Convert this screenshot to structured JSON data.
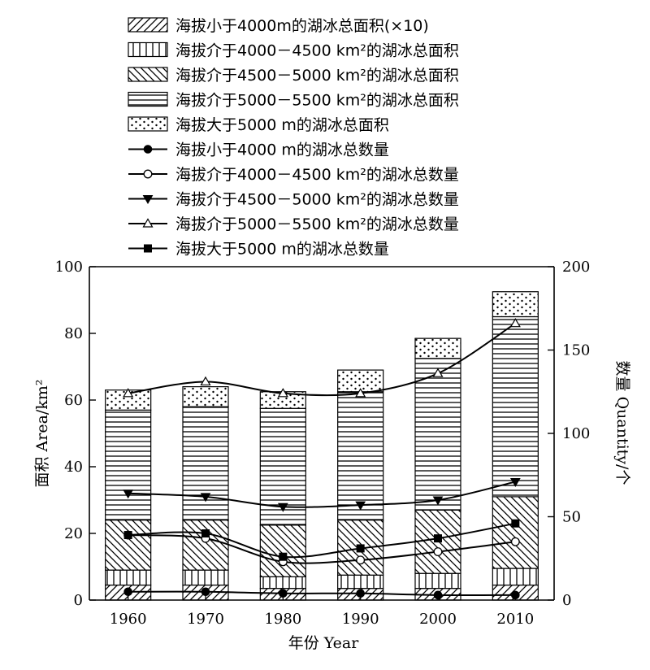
{
  "chart_data": {
    "type": "bar",
    "subtype": "stacked-bar-with-lines",
    "categories": [
      "1960",
      "1970",
      "1980",
      "1990",
      "2000",
      "2010"
    ],
    "xlabel": "年份 Year",
    "ylabel_left": "面积 Area/km²",
    "ylabel_right": "数量 Quantity/个",
    "ylim_left": [
      0,
      100
    ],
    "ylim_right": [
      0,
      200
    ],
    "yticks_left": [
      "0",
      "20",
      "40",
      "60",
      "80",
      "100"
    ],
    "yticks_right": [
      "0",
      "50",
      "100",
      "150",
      "200"
    ],
    "grid": false,
    "legend_position": "top",
    "bar_series": [
      {
        "name": "海拔小于4000m的湖冰总面积(×10)",
        "pattern": "diag-right",
        "values": [
          4.5,
          4.5,
          3.5,
          3.5,
          3.5,
          4.5
        ]
      },
      {
        "name": "海拔介于4000－4500 km²的湖冰总面积",
        "pattern": "vertical",
        "values": [
          4.5,
          4.5,
          3.5,
          4.0,
          4.5,
          5.0
        ]
      },
      {
        "name": "海拔介于4500－5000 km²的湖冰总面积",
        "pattern": "diag-left",
        "values": [
          15.0,
          15.0,
          15.5,
          16.5,
          19.0,
          21.5
        ]
      },
      {
        "name": "海拔介于5000－5500 km²的湖冰总面积",
        "pattern": "horizontal",
        "values": [
          33.0,
          34.0,
          35.0,
          38.5,
          45.5,
          54.0
        ]
      },
      {
        "name": "海拔大于5000 m的湖冰总面积",
        "pattern": "dots",
        "values": [
          6.0,
          6.0,
          5.0,
          6.5,
          6.0,
          7.5
        ]
      }
    ],
    "line_series": [
      {
        "name": "海拔小于4000 m的湖冰总数量",
        "marker": "filled-circle",
        "values": [
          5,
          5,
          4,
          4,
          3,
          3
        ]
      },
      {
        "name": "海拔介于4000－4500 km²的湖冰总数量",
        "marker": "open-circle",
        "values": [
          39,
          37,
          23,
          24,
          29,
          35
        ]
      },
      {
        "name": "海拔介于4500－5000 km²的湖冰总数量",
        "marker": "filled-triangle-down",
        "values": [
          64,
          62,
          56,
          57,
          60,
          71
        ]
      },
      {
        "name": "海拔介于5000－5500 km²的湖冰总数量",
        "marker": "open-triangle-up",
        "values": [
          124,
          131,
          124,
          124,
          136,
          166
        ]
      },
      {
        "name": "海拔大于5000 m的湖冰总数量",
        "marker": "filled-square",
        "values": [
          39,
          40,
          26,
          31,
          37,
          46
        ]
      }
    ]
  }
}
